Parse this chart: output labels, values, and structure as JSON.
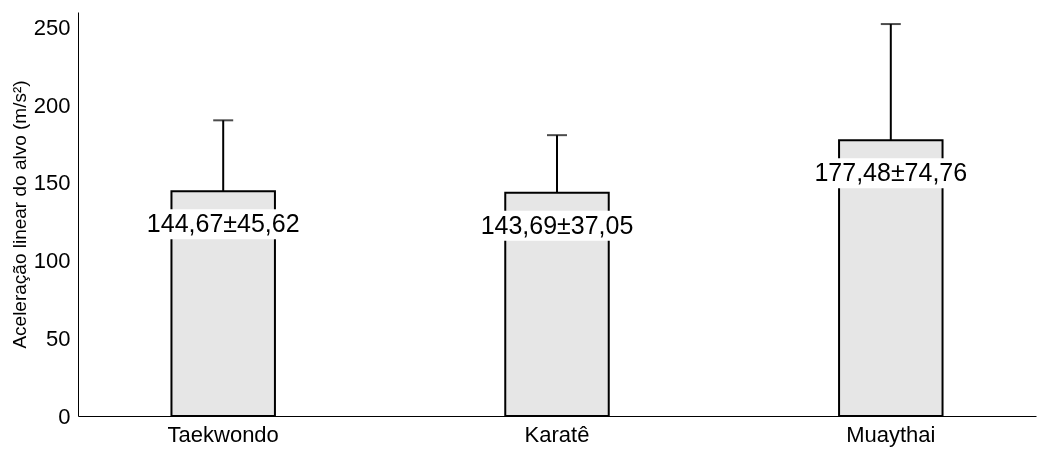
{
  "chart_data": {
    "type": "bar",
    "ylabel": "Aceleração linear do alvo  (m/s²)",
    "categories": [
      "Taekwondo",
      "Karatê",
      "Muaythai"
    ],
    "values": [
      144.67,
      143.69,
      177.48
    ],
    "errors": [
      [
        144.67,
        190.29
      ],
      [
        143.69,
        180.74
      ],
      [
        177.48,
        252.24
      ]
    ],
    "value_labels": [
      "144,67±45,62",
      "143,69±37,05",
      "177,48±74,76"
    ],
    "color": "#e6e6e6",
    "ylim": [
      0,
      260
    ],
    "yticks": [
      0,
      50,
      100,
      150,
      200,
      250
    ],
    "grid": false
  }
}
